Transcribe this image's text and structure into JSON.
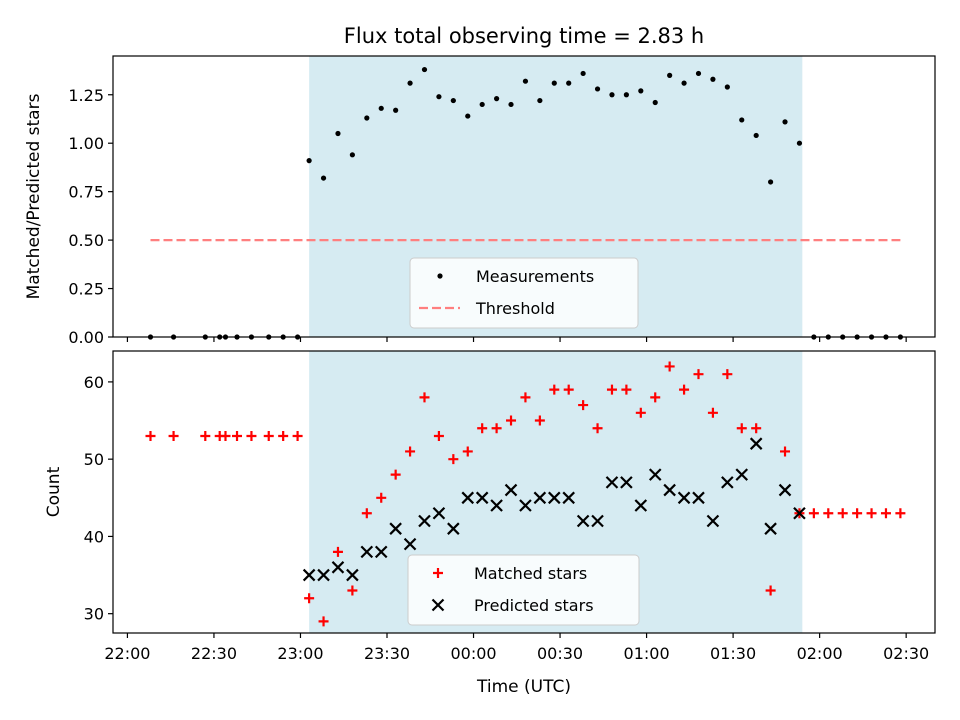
{
  "chart_data": [
    {
      "type": "scatter",
      "title": "Flux total observing time = 2.83 h",
      "xlabel": "",
      "ylabel": "Matched/Predicted stars",
      "xlim": [
        "21:55",
        "02:40"
      ],
      "ylim": [
        0,
        1.45
      ],
      "ytick_labels": [
        "0.00",
        "0.25",
        "0.50",
        "0.75",
        "1.00",
        "1.25"
      ],
      "span": [
        "23:03",
        "01:54"
      ],
      "span_color": "#add8e6",
      "legend_position": "lower center",
      "series": [
        {
          "name": "Measurements",
          "marker": "dot",
          "color": "#000000",
          "points": [
            [
              "22:08",
              0
            ],
            [
              "22:16",
              0
            ],
            [
              "22:27",
              0
            ],
            [
              "22:32",
              0
            ],
            [
              "22:34",
              0
            ],
            [
              "22:38",
              0
            ],
            [
              "22:43",
              0
            ],
            [
              "22:49",
              0
            ],
            [
              "22:54",
              0
            ],
            [
              "22:59",
              0
            ],
            [
              "23:03",
              0.91
            ],
            [
              "23:08",
              0.82
            ],
            [
              "23:13",
              1.05
            ],
            [
              "23:18",
              0.94
            ],
            [
              "23:23",
              1.13
            ],
            [
              "23:28",
              1.18
            ],
            [
              "23:33",
              1.17
            ],
            [
              "23:38",
              1.31
            ],
            [
              "23:43",
              1.38
            ],
            [
              "23:48",
              1.24
            ],
            [
              "23:53",
              1.22
            ],
            [
              "23:58",
              1.14
            ],
            [
              "00:03",
              1.2
            ],
            [
              "00:08",
              1.23
            ],
            [
              "00:13",
              1.2
            ],
            [
              "00:18",
              1.32
            ],
            [
              "00:23",
              1.22
            ],
            [
              "00:28",
              1.31
            ],
            [
              "00:33",
              1.31
            ],
            [
              "00:38",
              1.36
            ],
            [
              "00:43",
              1.28
            ],
            [
              "00:48",
              1.25
            ],
            [
              "00:53",
              1.25
            ],
            [
              "00:58",
              1.27
            ],
            [
              "01:03",
              1.21
            ],
            [
              "01:08",
              1.35
            ],
            [
              "01:13",
              1.31
            ],
            [
              "01:18",
              1.36
            ],
            [
              "01:23",
              1.33
            ],
            [
              "01:28",
              1.29
            ],
            [
              "01:33",
              1.12
            ],
            [
              "01:38",
              1.04
            ],
            [
              "01:43",
              0.8
            ],
            [
              "01:48",
              1.11
            ],
            [
              "01:53",
              1.0
            ],
            [
              "01:58",
              0
            ],
            [
              "02:03",
              0
            ],
            [
              "02:08",
              0
            ],
            [
              "02:13",
              0
            ],
            [
              "02:18",
              0
            ],
            [
              "02:23",
              0
            ],
            [
              "02:28",
              0
            ]
          ]
        },
        {
          "name": "Threshold",
          "marker": "dashed-line",
          "color": "#ff7f7f",
          "points": [
            [
              "22:08",
              0.5
            ],
            [
              "02:28",
              0.5
            ]
          ]
        }
      ]
    },
    {
      "type": "scatter",
      "title": "",
      "xlabel": "Time (UTC)",
      "ylabel": "Count",
      "xlim": [
        "21:55",
        "02:40"
      ],
      "ylim": [
        27.5,
        64
      ],
      "ytick_labels": [
        "30",
        "40",
        "50",
        "60"
      ],
      "xtick_labels": [
        "22:00",
        "22:30",
        "23:00",
        "23:30",
        "00:00",
        "00:30",
        "01:00",
        "01:30",
        "02:00",
        "02:30"
      ],
      "span": [
        "23:03",
        "01:54"
      ],
      "span_color": "#add8e6",
      "legend_position": "lower center",
      "series": [
        {
          "name": "Matched stars",
          "marker": "plus",
          "color": "#ff0000",
          "points": [
            [
              "22:08",
              53
            ],
            [
              "22:16",
              53
            ],
            [
              "22:27",
              53
            ],
            [
              "22:32",
              53
            ],
            [
              "22:34",
              53
            ],
            [
              "22:38",
              53
            ],
            [
              "22:43",
              53
            ],
            [
              "22:49",
              53
            ],
            [
              "22:54",
              53
            ],
            [
              "22:59",
              53
            ],
            [
              "23:03",
              32
            ],
            [
              "23:08",
              29
            ],
            [
              "23:13",
              38
            ],
            [
              "23:18",
              33
            ],
            [
              "23:23",
              43
            ],
            [
              "23:28",
              45
            ],
            [
              "23:33",
              48
            ],
            [
              "23:38",
              51
            ],
            [
              "23:43",
              58
            ],
            [
              "23:48",
              53
            ],
            [
              "23:53",
              50
            ],
            [
              "23:58",
              51
            ],
            [
              "00:03",
              54
            ],
            [
              "00:08",
              54
            ],
            [
              "00:13",
              55
            ],
            [
              "00:18",
              58
            ],
            [
              "00:23",
              55
            ],
            [
              "00:28",
              59
            ],
            [
              "00:33",
              59
            ],
            [
              "00:38",
              57
            ],
            [
              "00:43",
              54
            ],
            [
              "00:48",
              59
            ],
            [
              "00:53",
              59
            ],
            [
              "00:58",
              56
            ],
            [
              "01:03",
              58
            ],
            [
              "01:08",
              62
            ],
            [
              "01:13",
              59
            ],
            [
              "01:18",
              61
            ],
            [
              "01:23",
              56
            ],
            [
              "01:28",
              61
            ],
            [
              "01:33",
              54
            ],
            [
              "01:38",
              54
            ],
            [
              "01:43",
              33
            ],
            [
              "01:48",
              51
            ],
            [
              "01:53",
              43
            ],
            [
              "01:58",
              43
            ],
            [
              "02:03",
              43
            ],
            [
              "02:08",
              43
            ],
            [
              "02:13",
              43
            ],
            [
              "02:18",
              43
            ],
            [
              "02:23",
              43
            ],
            [
              "02:28",
              43
            ]
          ]
        },
        {
          "name": "Predicted stars",
          "marker": "x",
          "color": "#000000",
          "points": [
            [
              "23:03",
              35
            ],
            [
              "23:08",
              35
            ],
            [
              "23:13",
              36
            ],
            [
              "23:18",
              35
            ],
            [
              "23:23",
              38
            ],
            [
              "23:28",
              38
            ],
            [
              "23:33",
              41
            ],
            [
              "23:38",
              39
            ],
            [
              "23:43",
              42
            ],
            [
              "23:48",
              43
            ],
            [
              "23:53",
              41
            ],
            [
              "23:58",
              45
            ],
            [
              "00:03",
              45
            ],
            [
              "00:08",
              44
            ],
            [
              "00:13",
              46
            ],
            [
              "00:18",
              44
            ],
            [
              "00:23",
              45
            ],
            [
              "00:28",
              45
            ],
            [
              "00:33",
              45
            ],
            [
              "00:38",
              42
            ],
            [
              "00:43",
              42
            ],
            [
              "00:48",
              47
            ],
            [
              "00:53",
              47
            ],
            [
              "00:58",
              44
            ],
            [
              "01:03",
              48
            ],
            [
              "01:08",
              46
            ],
            [
              "01:13",
              45
            ],
            [
              "01:18",
              45
            ],
            [
              "01:23",
              42
            ],
            [
              "01:28",
              47
            ],
            [
              "01:33",
              48
            ],
            [
              "01:38",
              52
            ],
            [
              "01:43",
              41
            ],
            [
              "01:48",
              46
            ],
            [
              "01:53",
              43
            ]
          ]
        }
      ]
    }
  ]
}
